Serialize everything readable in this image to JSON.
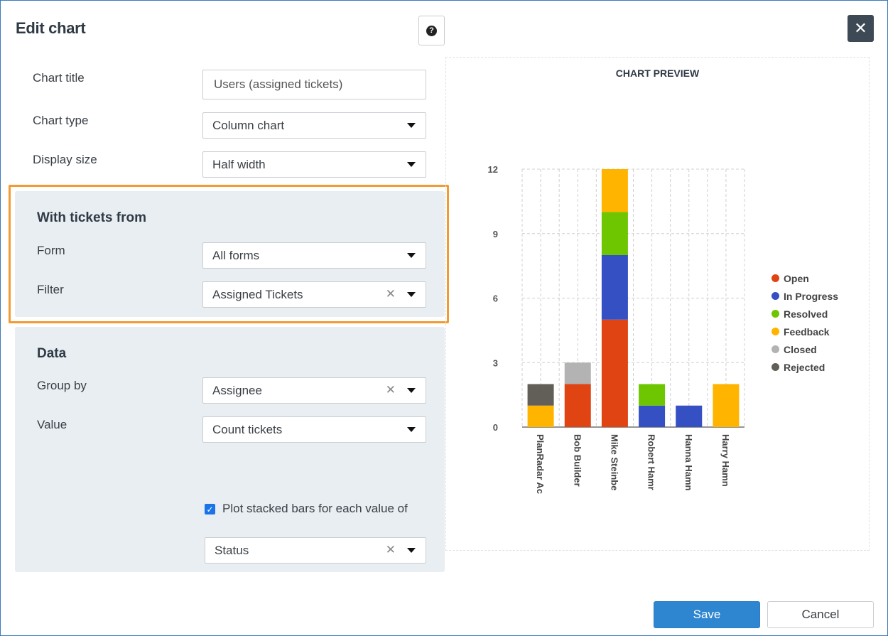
{
  "dialog": {
    "title": "Edit chart",
    "help_icon": "question-circle-icon",
    "close_icon": "close-icon",
    "close_glyph": "✕"
  },
  "form": {
    "chart_title_label": "Chart title",
    "chart_title_value": "Users (assigned tickets)",
    "chart_type_label": "Chart type",
    "chart_type_value": "Column chart",
    "display_size_label": "Display size",
    "display_size_value": "Half width"
  },
  "tickets_from": {
    "heading": "With tickets from",
    "form_label": "Form",
    "form_value": "All forms",
    "filter_label": "Filter",
    "filter_value": "Assigned Tickets"
  },
  "data_section": {
    "heading": "Data",
    "group_by_label": "Group by",
    "group_by_value": "Assignee",
    "value_label": "Value",
    "value_value": "Count tickets",
    "stacked_label": "Plot stacked bars for each value of",
    "stacked_checked": true,
    "stack_by_value": "Status"
  },
  "buttons": {
    "save": "Save",
    "cancel": "Cancel"
  },
  "preview": {
    "title": "CHART PREVIEW"
  },
  "chart_data": {
    "type": "bar",
    "stacked": true,
    "categories": [
      "PlanRadar Ac",
      "Bob Builder",
      "Mike Steinbe",
      "Robert Hamr",
      "Hanna Hamn",
      "Harry Hamn"
    ],
    "series": [
      {
        "name": "Open",
        "color": "#e04412",
        "values": [
          0,
          2,
          5,
          0,
          0,
          0
        ]
      },
      {
        "name": "In Progress",
        "color": "#3550c2",
        "values": [
          0,
          0,
          3,
          1,
          1,
          0
        ]
      },
      {
        "name": "Resolved",
        "color": "#6ec600",
        "values": [
          0,
          0,
          2,
          1,
          0,
          0
        ]
      },
      {
        "name": "Feedback",
        "color": "#ffb400",
        "values": [
          1,
          0,
          2,
          0,
          0,
          2
        ]
      },
      {
        "name": "Closed",
        "color": "#b3b3b3",
        "values": [
          0,
          1,
          0,
          0,
          0,
          0
        ]
      },
      {
        "name": "Rejected",
        "color": "#625f58",
        "values": [
          1,
          0,
          0,
          0,
          0,
          0
        ]
      }
    ],
    "yticks": [
      "0",
      "3",
      "6",
      "9",
      "12"
    ],
    "ylim": [
      0,
      12
    ],
    "grid": true,
    "legend_position": "right"
  }
}
